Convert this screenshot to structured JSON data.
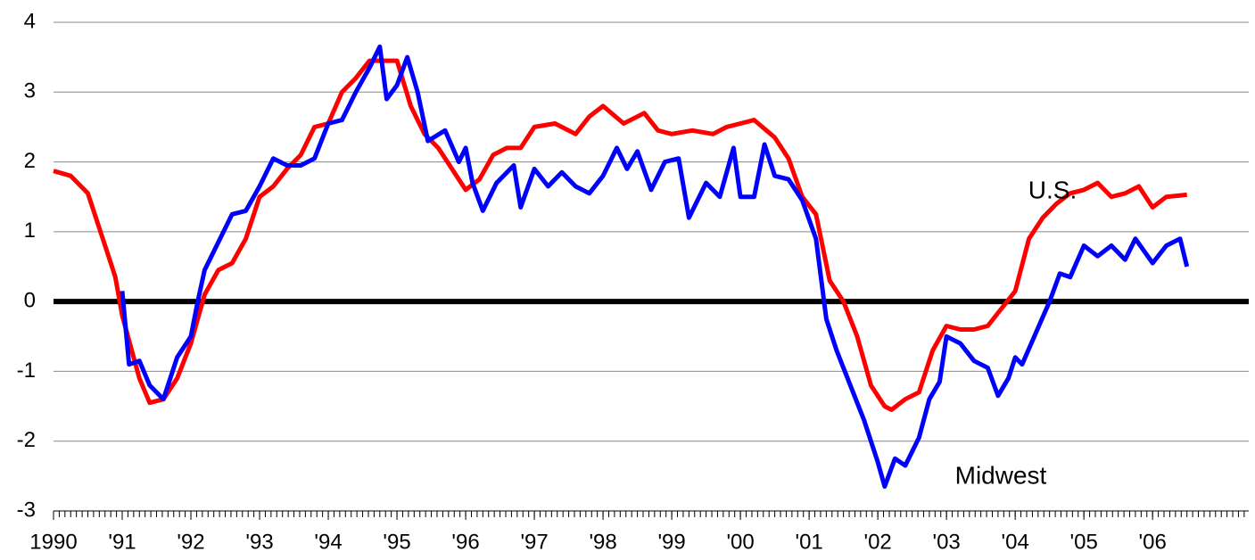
{
  "chart_data": {
    "type": "line",
    "xlim": [
      1990,
      2007.4
    ],
    "xticks": [
      {
        "value": 1990,
        "label": "1990"
      },
      {
        "value": 1991,
        "label": "'91"
      },
      {
        "value": 1992,
        "label": "'92"
      },
      {
        "value": 1993,
        "label": "'93"
      },
      {
        "value": 1994,
        "label": "'94"
      },
      {
        "value": 1995,
        "label": "'95"
      },
      {
        "value": 1996,
        "label": "'96"
      },
      {
        "value": 1997,
        "label": "'97"
      },
      {
        "value": 1998,
        "label": "'98"
      },
      {
        "value": 1999,
        "label": "'99"
      },
      {
        "value": 2000,
        "label": "'00"
      },
      {
        "value": 2001,
        "label": "'01"
      },
      {
        "value": 2002,
        "label": "'02"
      },
      {
        "value": 2003,
        "label": "'03"
      },
      {
        "value": 2004,
        "label": "'04"
      },
      {
        "value": 2005,
        "label": "'05"
      },
      {
        "value": 2006,
        "label": "'06"
      }
    ],
    "ylim": [
      -3,
      4
    ],
    "yticks": [
      -3,
      -2,
      -1,
      0,
      1,
      2,
      3,
      4
    ],
    "grid": true,
    "annotations": [
      "U.S.",
      "Midwest"
    ],
    "series": [
      {
        "name": "U.S.",
        "color": "#ff0000",
        "x": [
          1990.0,
          1990.25,
          1990.5,
          1990.75,
          1990.9,
          1991.0,
          1991.25,
          1991.4,
          1991.6,
          1991.8,
          1992.0,
          1992.2,
          1992.4,
          1992.6,
          1992.8,
          1993.0,
          1993.2,
          1993.4,
          1993.6,
          1993.8,
          1994.0,
          1994.2,
          1994.4,
          1994.6,
          1994.8,
          1995.0,
          1995.2,
          1995.4,
          1995.6,
          1995.8,
          1996.0,
          1996.2,
          1996.4,
          1996.6,
          1996.8,
          1997.0,
          1997.3,
          1997.6,
          1997.8,
          1998.0,
          1998.3,
          1998.6,
          1998.8,
          1999.0,
          1999.3,
          1999.6,
          1999.8,
          2000.0,
          2000.2,
          2000.5,
          2000.7,
          2000.9,
          2001.1,
          2001.3,
          2001.5,
          2001.7,
          2001.9,
          2002.1,
          2002.2,
          2002.4,
          2002.6,
          2002.8,
          2003.0,
          2003.2,
          2003.4,
          2003.6,
          2003.8,
          2004.0,
          2004.2,
          2004.4,
          2004.6,
          2004.8,
          2005.0,
          2005.2,
          2005.4,
          2005.6,
          2005.8,
          2006.0,
          2006.2,
          2006.5
        ],
        "values": [
          1.87,
          1.8,
          1.55,
          0.8,
          0.35,
          -0.2,
          -1.1,
          -1.45,
          -1.4,
          -1.1,
          -0.6,
          0.1,
          0.45,
          0.55,
          0.9,
          1.5,
          1.65,
          1.9,
          2.1,
          2.5,
          2.55,
          3.0,
          3.2,
          3.45,
          3.45,
          3.45,
          2.8,
          2.4,
          2.2,
          1.9,
          1.6,
          1.75,
          2.1,
          2.2,
          2.2,
          2.5,
          2.55,
          2.4,
          2.65,
          2.8,
          2.55,
          2.7,
          2.45,
          2.4,
          2.45,
          2.4,
          2.5,
          2.55,
          2.6,
          2.35,
          2.05,
          1.5,
          1.25,
          0.3,
          0.0,
          -0.5,
          -1.2,
          -1.5,
          -1.55,
          -1.4,
          -1.3,
          -0.7,
          -0.35,
          -0.4,
          -0.4,
          -0.35,
          -0.1,
          0.15,
          0.9,
          1.2,
          1.4,
          1.55,
          1.6,
          1.7,
          1.5,
          1.55,
          1.65,
          1.35,
          1.5,
          1.53
        ]
      },
      {
        "name": "Midwest",
        "color": "#0000ff",
        "x": [
          1991.0,
          1991.1,
          1991.25,
          1991.4,
          1991.6,
          1991.8,
          1992.0,
          1992.1,
          1992.2,
          1992.4,
          1992.6,
          1992.8,
          1993.0,
          1993.2,
          1993.4,
          1993.6,
          1993.8,
          1994.0,
          1994.2,
          1994.4,
          1994.6,
          1994.75,
          1994.85,
          1995.0,
          1995.15,
          1995.3,
          1995.45,
          1995.7,
          1995.9,
          1996.0,
          1996.1,
          1996.25,
          1996.45,
          1996.7,
          1996.8,
          1997.0,
          1997.2,
          1997.4,
          1997.6,
          1997.8,
          1998.0,
          1998.2,
          1998.35,
          1998.5,
          1998.7,
          1998.9,
          1999.1,
          1999.25,
          1999.5,
          1999.7,
          1999.9,
          2000.0,
          2000.2,
          2000.35,
          2000.5,
          2000.7,
          2000.9,
          2001.1,
          2001.25,
          2001.4,
          2001.6,
          2001.8,
          2002.0,
          2002.1,
          2002.25,
          2002.4,
          2002.6,
          2002.75,
          2002.9,
          2003.0,
          2003.2,
          2003.4,
          2003.6,
          2003.75,
          2003.9,
          2004.0,
          2004.1,
          2004.3,
          2004.5,
          2004.65,
          2004.8,
          2005.0,
          2005.2,
          2005.4,
          2005.6,
          2005.75,
          2006.0,
          2006.2,
          2006.4,
          2006.5
        ],
        "values": [
          0.15,
          -0.9,
          -0.85,
          -1.2,
          -1.4,
          -0.8,
          -0.5,
          0.0,
          0.45,
          0.85,
          1.25,
          1.3,
          1.65,
          2.05,
          1.95,
          1.95,
          2.05,
          2.55,
          2.6,
          3.0,
          3.35,
          3.65,
          2.9,
          3.1,
          3.5,
          3.0,
          2.3,
          2.45,
          2.0,
          2.2,
          1.7,
          1.3,
          1.7,
          1.95,
          1.35,
          1.9,
          1.65,
          1.85,
          1.65,
          1.55,
          1.8,
          2.2,
          1.9,
          2.15,
          1.6,
          2.0,
          2.05,
          1.2,
          1.7,
          1.5,
          2.2,
          1.5,
          1.5,
          2.25,
          1.8,
          1.75,
          1.45,
          0.9,
          -0.25,
          -0.7,
          -1.2,
          -1.7,
          -2.3,
          -2.65,
          -2.25,
          -2.35,
          -1.95,
          -1.4,
          -1.15,
          -0.5,
          -0.6,
          -0.85,
          -0.95,
          -1.35,
          -1.1,
          -0.8,
          -0.9,
          -0.45,
          0.0,
          0.4,
          0.35,
          0.8,
          0.65,
          0.8,
          0.6,
          0.9,
          0.55,
          0.8,
          0.9,
          0.5
        ]
      }
    ]
  }
}
